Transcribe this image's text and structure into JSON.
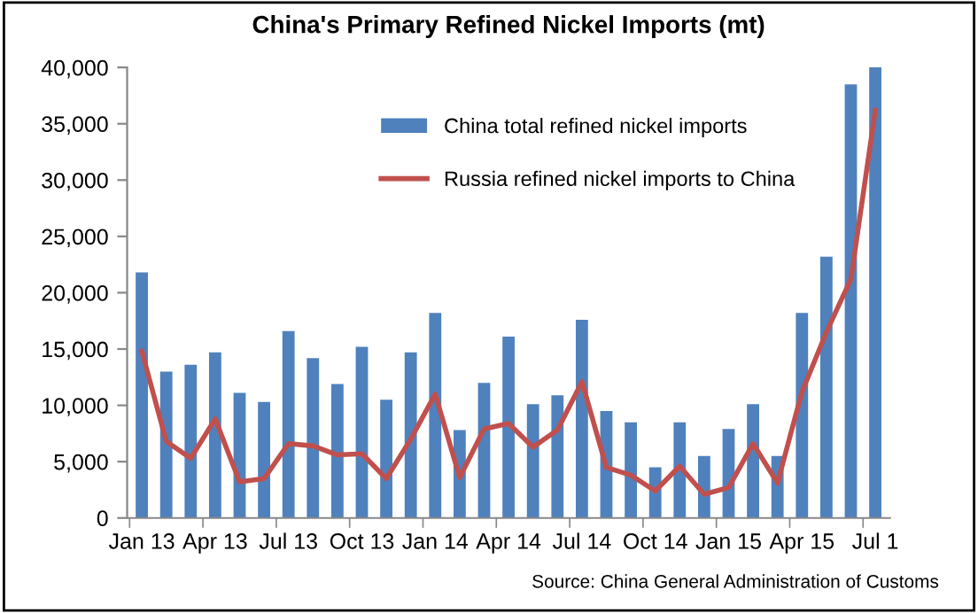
{
  "chart_data": {
    "type": "bar",
    "title": "China's Primary Refined Nickel Imports (mt)",
    "categories": [
      "Jan 13",
      null,
      null,
      "Apr 13",
      null,
      null,
      "Jul 13",
      null,
      null,
      "Oct 13",
      null,
      null,
      "Jan 14",
      null,
      null,
      "Apr 14",
      null,
      null,
      "Jul 14",
      null,
      null,
      "Oct 14",
      null,
      null,
      "Jan 15",
      null,
      null,
      "Apr 15",
      null,
      null,
      "Jul 1"
    ],
    "series": [
      {
        "name": "China total refined nickel imports",
        "color": "#4f81bd",
        "values": [
          21800,
          13000,
          13600,
          14700,
          11100,
          10300,
          16600,
          14200,
          11900,
          15200,
          10500,
          14700,
          18200,
          7800,
          12000,
          16100,
          10100,
          10900,
          17600,
          9500,
          8500,
          4500,
          8500,
          5500,
          7900,
          10100,
          5500,
          18200,
          23200,
          38500,
          40000
        ]
      },
      {
        "name": "Russia refined nickel imports to China",
        "type": "line",
        "color": "#c0504d",
        "values": [
          14800,
          6800,
          5300,
          8800,
          3200,
          3500,
          6600,
          6400,
          5600,
          5700,
          3500,
          7000,
          11000,
          3600,
          7900,
          8400,
          6300,
          7800,
          12100,
          4500,
          3800,
          2400,
          4600,
          2100,
          2700,
          6600,
          3100,
          11200,
          16500,
          21200,
          36200
        ]
      }
    ],
    "ylim": [
      0,
      40000
    ],
    "yticks": [
      {
        "value": 0,
        "label": "0"
      },
      {
        "value": 5000,
        "label": "5,000"
      },
      {
        "value": 10000,
        "label": "10,000"
      },
      {
        "value": 15000,
        "label": "15,000"
      },
      {
        "value": 20000,
        "label": "20,000"
      },
      {
        "value": 25000,
        "label": "25,000"
      },
      {
        "value": 30000,
        "label": "30,000"
      },
      {
        "value": 35000,
        "label": "35,000"
      },
      {
        "value": 40000,
        "label": "40,000"
      }
    ],
    "grid": false,
    "legend": "top right",
    "marker": "none",
    "line_style": "solid",
    "annotations": [
      "Source: China General Administration of Customs"
    ]
  }
}
